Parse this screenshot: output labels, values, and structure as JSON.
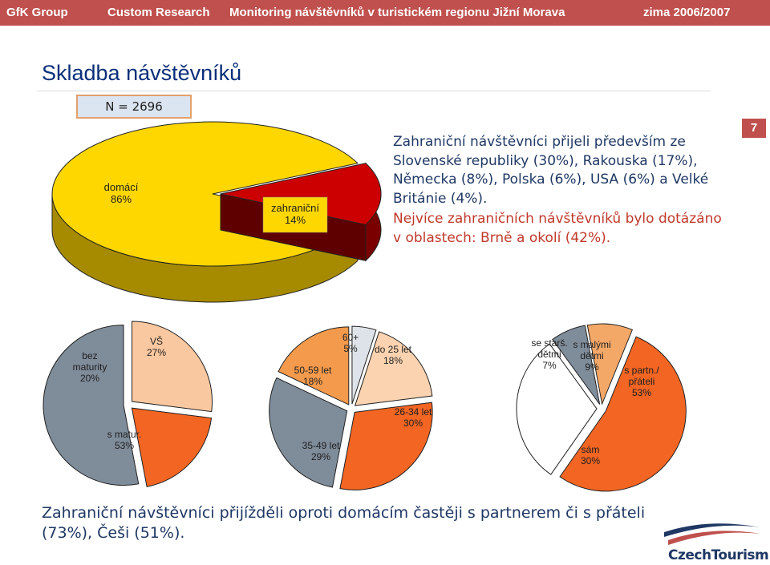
{
  "header": {
    "company": "GfK Group",
    "division": "Custom Research",
    "project": "Monitoring návštěvníků v turistickém regionu Jižní Morava",
    "period": "zima 2006/2007"
  },
  "page_title": "Skladba návštěvníků",
  "sample_size": "N = 2696",
  "page_number": "7",
  "summary": {
    "line1": "Zahraniční návštěvníci přijeli především ze Slovenské republiky (30%), Rakouska (17%), Německa (8%), Polska (6%), USA (6%) a Velké Británie (4%).",
    "line2": "Nejvíce zahraničních návštěvníků bylo dotázáno v oblastech: Brně a okolí (42%)."
  },
  "bottom_text": "Zahraniční návštěvníci přijížděli oproti domácím častěji s partnerem či s přáteli (73%), Češi (51%).",
  "logo": {
    "text": "CzechTourism"
  },
  "colors": {
    "header_bg": "#c0504d",
    "domestic": "#ffd700",
    "foreign": "#cc0000",
    "grey": "#7f8c9a",
    "peach": "#fac8a0",
    "orange": "#f26522",
    "light": "#d9dee3"
  },
  "chart_data": [
    {
      "type": "pie",
      "categories": [
        "domácí",
        "zahraniční"
      ],
      "values": [
        86,
        14
      ],
      "labels": [
        "domácí\n86%",
        "zahraniční\n14%"
      ]
    },
    {
      "type": "pie",
      "categories": [
        "VŠ",
        "bez maturity",
        "s matur."
      ],
      "values": [
        27,
        20,
        53
      ],
      "labels": [
        "VŠ\n27%",
        "bez\nmaturity\n20%",
        "s matur.\n53%"
      ]
    },
    {
      "type": "pie",
      "categories": [
        "60+",
        "do 25 let",
        "26-34 let",
        "35-49 let",
        "50-59 let"
      ],
      "values": [
        5,
        18,
        30,
        29,
        18
      ],
      "labels": [
        "60+\n5%",
        "do 25 let\n18%",
        "26-34 let\n30%",
        "35-49 let\n29%",
        "50-59 let\n18%"
      ]
    },
    {
      "type": "pie",
      "categories": [
        "se starš. dětmi",
        "s malými dětmi",
        "s partn./ přáteli",
        "sám"
      ],
      "values": [
        7,
        9,
        53,
        30
      ],
      "labels": [
        "se starš.\ndětmi\n7%",
        "s malými\ndětmi\n9%",
        "s partn./\npřáteli\n53%",
        "sám\n30%"
      ]
    }
  ]
}
